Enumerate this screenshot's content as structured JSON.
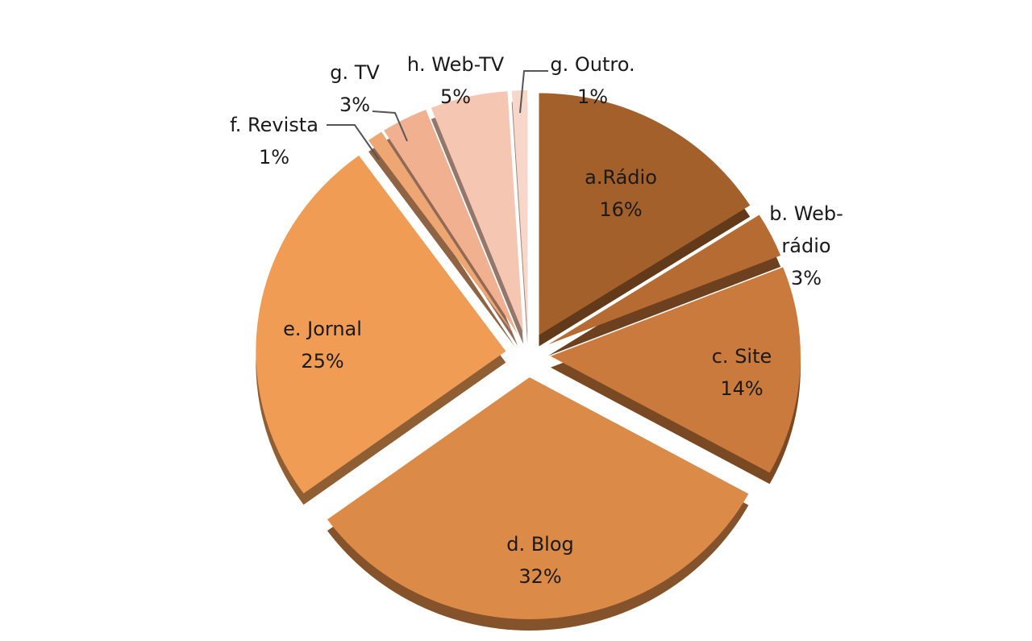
{
  "chart_data": {
    "type": "pie",
    "categories": [
      "a.Rádio",
      "b. Web-rádio",
      "c. Site",
      "d. Blog",
      "e. Jornal",
      "f. Revista",
      "g. TV",
      "h. Web-TV",
      "g. Outro."
    ],
    "values": [
      16,
      3,
      14,
      32,
      25,
      1,
      3,
      5,
      1
    ],
    "value_labels": [
      "16%",
      "3%",
      "14%",
      "32%",
      "25%",
      "1%",
      "3%",
      "5%",
      "1%"
    ],
    "colors": [
      "#a3602b",
      "#b66b33",
      "#c97a3c",
      "#dc8a48",
      "#f09c55",
      "#eea673",
      "#f1b190",
      "#f5c7b2",
      "#f7d7ca"
    ]
  }
}
